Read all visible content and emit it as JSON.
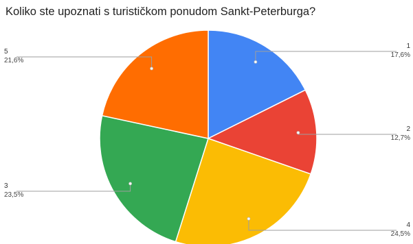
{
  "chart_data": {
    "type": "pie",
    "title": "Koliko ste upoznati s turističkom ponudom Sankt-Peterburga?",
    "slices": [
      {
        "label": "1",
        "percent_label": "17,6%",
        "value": 17.6,
        "color": "#4285f4"
      },
      {
        "label": "2",
        "percent_label": "12,7%",
        "value": 12.7,
        "color": "#ea4335"
      },
      {
        "label": "4",
        "percent_label": "24,5%",
        "value": 24.5,
        "color": "#fbbc04"
      },
      {
        "label": "3",
        "percent_label": "23,5%",
        "value": 23.5,
        "color": "#34a853"
      },
      {
        "label": "5",
        "percent_label": "21,6%",
        "value": 21.6,
        "color": "#ff6d01"
      }
    ]
  }
}
